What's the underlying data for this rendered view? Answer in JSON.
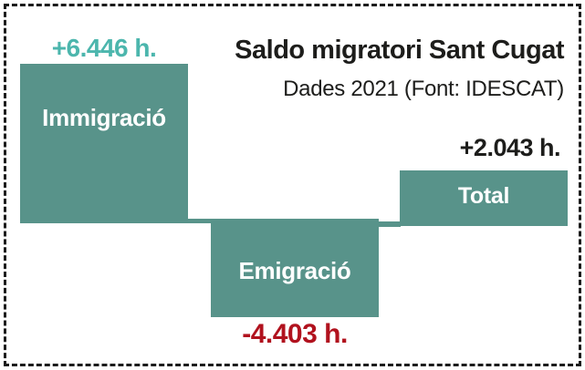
{
  "header": {
    "title": "Saldo migratori Sant Cugat",
    "subtitle": "Dades 2021 (Font: IDESCAT)"
  },
  "bars": {
    "immigracio": {
      "name": "Immigració",
      "value_label": "+6.446 h."
    },
    "emigracio": {
      "name": "Emigració",
      "value_label": "-4.403 h."
    },
    "total": {
      "name": "Total",
      "value_label": "+2.043 h."
    }
  },
  "colors": {
    "bar_fill": "#58938a",
    "positive_value_text": "#4cb6ad",
    "negative_value_text": "#b1121e",
    "total_value_text": "#1d1d1b",
    "bar_label_text": "#ffffff",
    "frame_dashed_border": "#1c1c1c",
    "background": "#ffffff"
  },
  "chart_data": {
    "type": "bar",
    "subtype": "waterfall",
    "title": "Saldo migratori Sant Cugat",
    "subtitle": "Dades 2021 (Font: IDESCAT)",
    "unit": "h.",
    "categories": [
      "Immigració",
      "Emigració",
      "Total"
    ],
    "values": [
      6446,
      -4403,
      2043
    ],
    "value_labels": [
      "+6.446 h.",
      "-4.403 h.",
      "+2.043 h."
    ],
    "bar_color": "#58938a",
    "value_label_colors": [
      "#4cb6ad",
      "#b1121e",
      "#1d1d1b"
    ],
    "axes_visible": false,
    "gridlines": false,
    "legend": false,
    "layout_hint": "waterfall: Immigració rises from zero line, Emigració hangs below zero line, Total sits on zero line; stepped connectors link bar corners"
  }
}
